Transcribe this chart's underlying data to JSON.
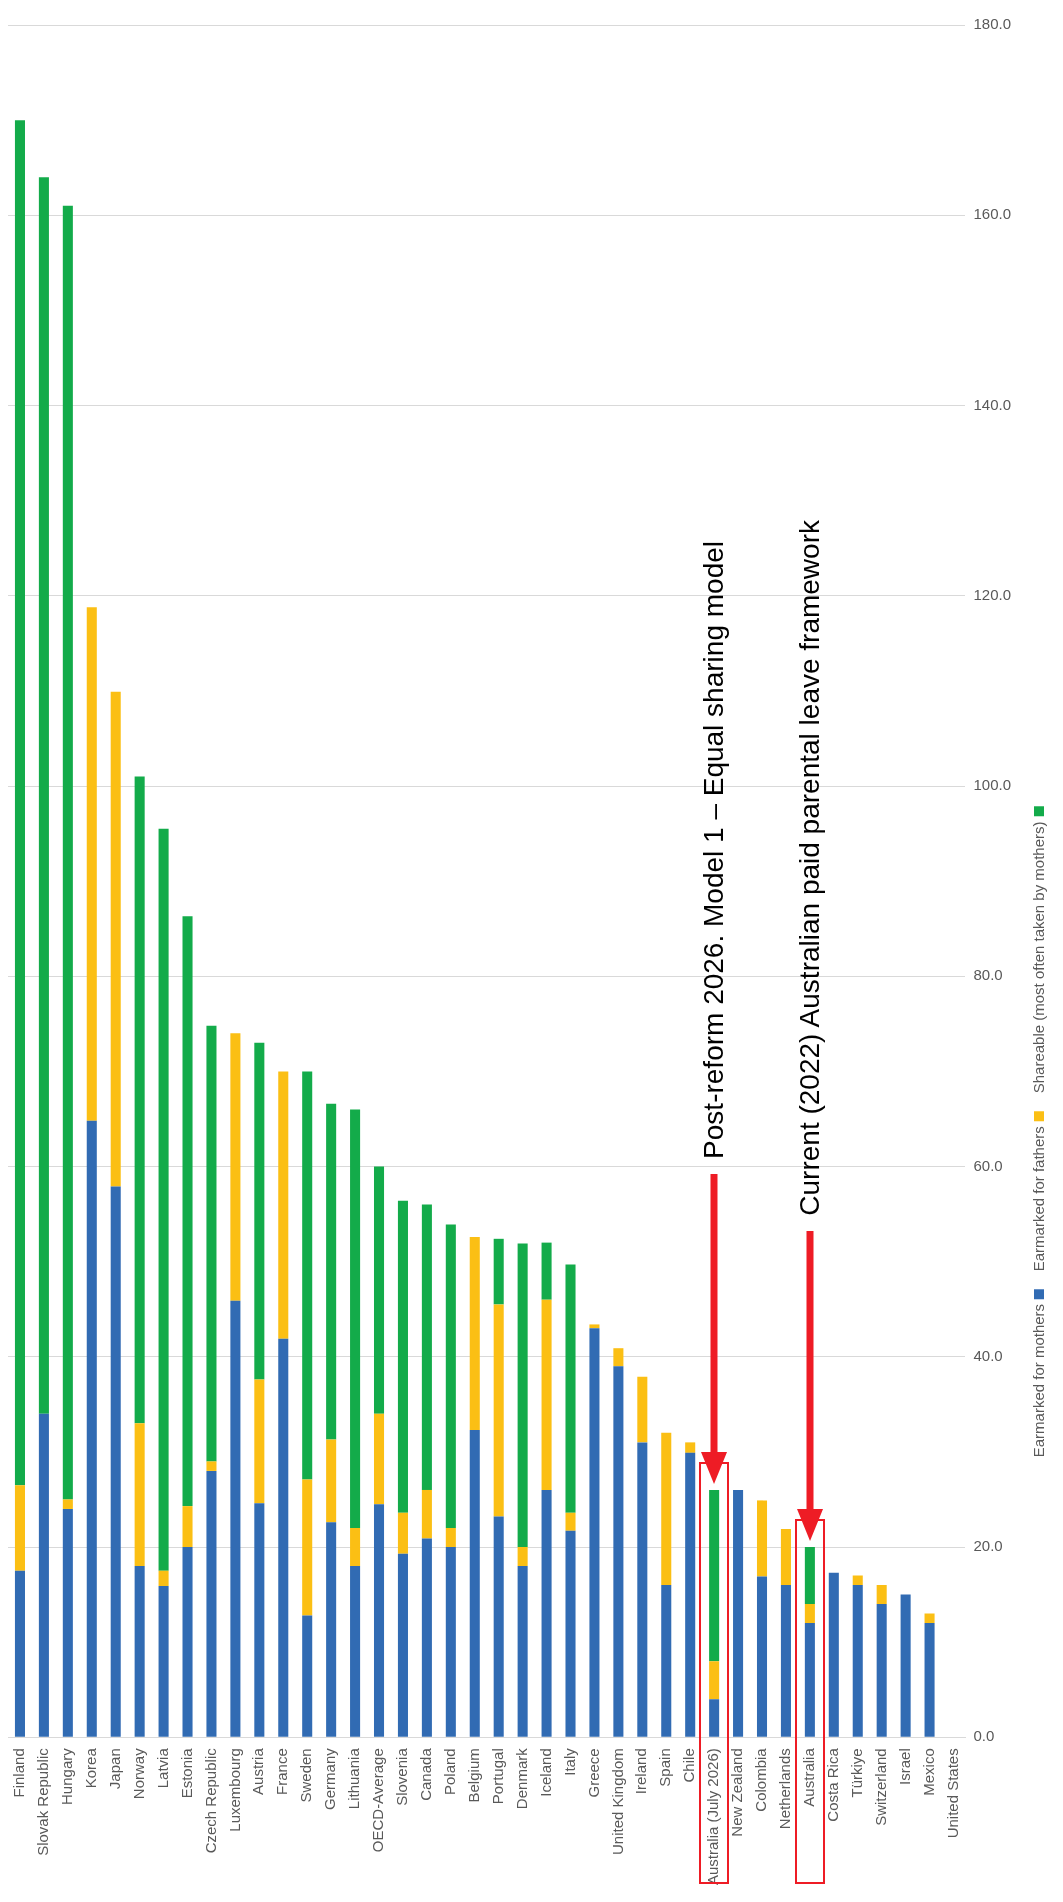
{
  "chart_data": {
    "type": "bar",
    "stacked": true,
    "categories": [
      "Finland",
      "Slovak Republic",
      "Hungary",
      "Korea",
      "Japan",
      "Norway",
      "Latvia",
      "Estonia",
      "Czech Republic",
      "Luxembourg",
      "Austria",
      "France",
      "Sweden",
      "Germany",
      "Lithuania",
      "OECD-Average",
      "Slovenia",
      "Canada",
      "Poland",
      "Belgium",
      "Portugal",
      "Denmark",
      "Iceland",
      "Italy",
      "Greece",
      "United Kingdom",
      "Ireland",
      "Spain",
      "Chile",
      "Australia (July 2026)",
      "New Zealand",
      "Colombia",
      "Netherlands",
      "Australia",
      "Costa Rica",
      "Türkiye",
      "Switzerland",
      "Israel",
      "Mexico",
      "United States"
    ],
    "series": [
      {
        "name": "Earmarked for mothers",
        "color": "#316bb3",
        "values": [
          17.5,
          34.0,
          24.0,
          64.8,
          57.9,
          18.0,
          15.9,
          20.0,
          28.0,
          45.9,
          24.6,
          41.9,
          12.8,
          22.6,
          18.0,
          24.5,
          19.3,
          20.9,
          20.0,
          32.3,
          23.2,
          18.0,
          26.0,
          21.7,
          43.0,
          39.0,
          31.0,
          16.0,
          29.9,
          4.0,
          26.0,
          16.9,
          16.0,
          12.0,
          17.3,
          16.0,
          14.0,
          15.0,
          12.0,
          0
        ]
      },
      {
        "name": "Earmarked for fathers",
        "color": "#fbbf14",
        "values": [
          9.0,
          null,
          1.0,
          54.0,
          52.0,
          15.0,
          1.6,
          4.3,
          1.0,
          28.1,
          13.0,
          28.1,
          14.3,
          8.7,
          4.0,
          9.5,
          4.3,
          5.1,
          2.0,
          20.3,
          22.3,
          2.0,
          20.0,
          1.9,
          0.4,
          1.9,
          6.9,
          16.0,
          1.1,
          4.0,
          null,
          8.0,
          5.9,
          2.0,
          null,
          1.0,
          2.0,
          null,
          1.0,
          null
        ]
      },
      {
        "name": "Shareable (most often taken by mothers)",
        "color": "#13ab4a",
        "values": [
          143.5,
          130.0,
          136.0,
          null,
          null,
          68.0,
          78.0,
          62.0,
          45.8,
          null,
          35.4,
          null,
          42.9,
          35.3,
          44.0,
          26.0,
          32.8,
          30.0,
          31.9,
          null,
          6.9,
          31.9,
          6.0,
          26.1,
          null,
          null,
          null,
          null,
          null,
          18.0,
          null,
          null,
          null,
          6.0,
          null,
          null,
          null,
          null,
          null,
          null
        ]
      }
    ],
    "ylim": [
      0,
      180
    ],
    "yticks": [
      {
        "value": 0,
        "label": "0.0"
      },
      {
        "value": 20,
        "label": "20.0"
      },
      {
        "value": 40,
        "label": "40.0"
      },
      {
        "value": 60,
        "label": "60.0"
      },
      {
        "value": 80,
        "label": "80.0"
      },
      {
        "value": 100,
        "label": "100.0"
      },
      {
        "value": 120,
        "label": "120.0"
      },
      {
        "value": 140,
        "label": "140.0"
      },
      {
        "value": 160,
        "label": "160.0"
      },
      {
        "value": 180,
        "label": "180.0"
      }
    ],
    "grid": "y",
    "legend": "right",
    "annotations": [
      "Post-reform 2026. Model 1 – Equal sharing model",
      "Current (2022) Australian paid parental leave framework"
    ]
  }
}
